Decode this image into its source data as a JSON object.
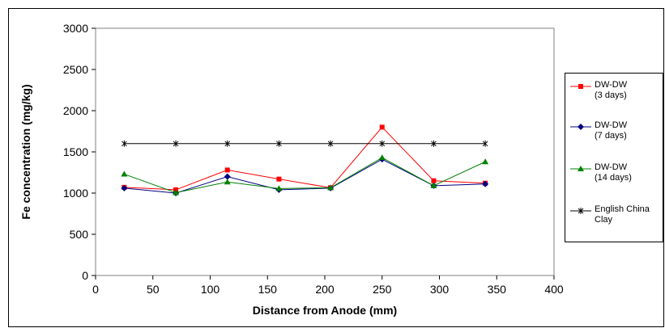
{
  "chart_data": {
    "type": "line",
    "title": "",
    "xlabel": "Distance from Anode (mm)",
    "ylabel": "Fe concentration (mg/kg)",
    "xlim": [
      0,
      400
    ],
    "ylim": [
      0,
      3000
    ],
    "xticks": [
      0,
      50,
      100,
      150,
      200,
      250,
      300,
      350,
      400
    ],
    "yticks": [
      0,
      500,
      1000,
      1500,
      2000,
      2500,
      3000
    ],
    "grid": false,
    "legend_position": "right",
    "series": [
      {
        "name": "DW-DW\n(3 days)",
        "color": "#ff0000",
        "marker": "square",
        "x": [
          25,
          70,
          115,
          160,
          205,
          250,
          295,
          340
        ],
        "y": [
          1070,
          1040,
          1280,
          1170,
          1065,
          1800,
          1150,
          1120
        ]
      },
      {
        "name": "DW-DW\n(7 days)",
        "color": "#000080",
        "marker": "diamond",
        "x": [
          25,
          70,
          115,
          160,
          205,
          250,
          295,
          340
        ],
        "y": [
          1060,
          1000,
          1200,
          1040,
          1060,
          1410,
          1090,
          1110
        ]
      },
      {
        "name": "DW-DW\n(14 days)",
        "color": "#008000",
        "marker": "triangle",
        "x": [
          25,
          70,
          115,
          160,
          205,
          250,
          295,
          340
        ],
        "y": [
          1230,
          1005,
          1135,
          1055,
          1065,
          1430,
          1090,
          1380
        ]
      },
      {
        "name": "English China\nClay",
        "color": "#000000",
        "marker": "star",
        "x": [
          25,
          70,
          115,
          160,
          205,
          250,
          295,
          340
        ],
        "y": [
          1600,
          1600,
          1600,
          1600,
          1600,
          1600,
          1600,
          1600
        ]
      }
    ]
  }
}
